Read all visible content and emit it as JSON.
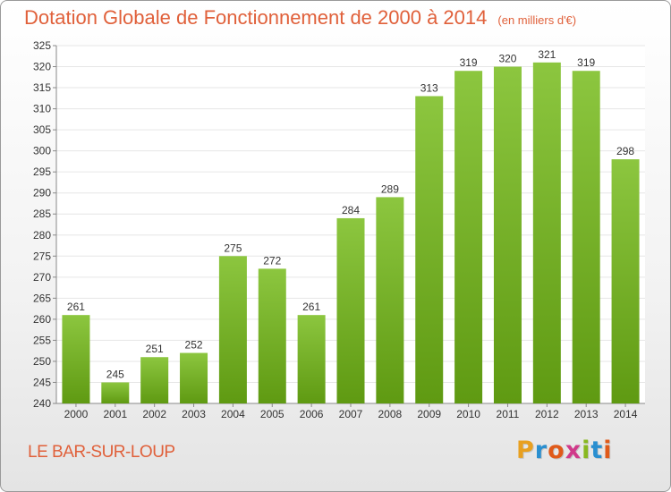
{
  "chart_data": {
    "type": "bar",
    "title": "Dotation Globale de Fonctionnement de 2000 à 2014",
    "subtitle": "(en milliers d'€)",
    "xlabel": "",
    "ylabel": "",
    "categories": [
      "2000",
      "2001",
      "2002",
      "2003",
      "2004",
      "2005",
      "2006",
      "2007",
      "2008",
      "2009",
      "2010",
      "2011",
      "2012",
      "2013",
      "2014"
    ],
    "values": [
      261,
      245,
      251,
      252,
      275,
      272,
      261,
      284,
      289,
      313,
      319,
      320,
      321,
      319,
      298
    ],
    "ylim": [
      240,
      325
    ],
    "yticks": [
      240,
      245,
      250,
      255,
      260,
      265,
      270,
      275,
      280,
      285,
      290,
      295,
      300,
      305,
      310,
      315,
      320,
      325
    ],
    "grid": true,
    "legend": "none",
    "bar_color": "#8cc63f",
    "bar_color_dark": "#5f9a12"
  },
  "footer": {
    "place": "LE BAR-SUR-LOUP",
    "logo_letters": [
      "P",
      "r",
      "o",
      "x",
      "i",
      "t",
      "i"
    ],
    "logo_colors": [
      "#e8a020",
      "#2a8fd0",
      "#e05a1a",
      "#d03a8a",
      "#88b820",
      "#2a8fd0",
      "#e05a1a"
    ]
  },
  "colors": {
    "title": "#e0603a",
    "grid": "#e6e6e6",
    "axis": "#888888"
  }
}
